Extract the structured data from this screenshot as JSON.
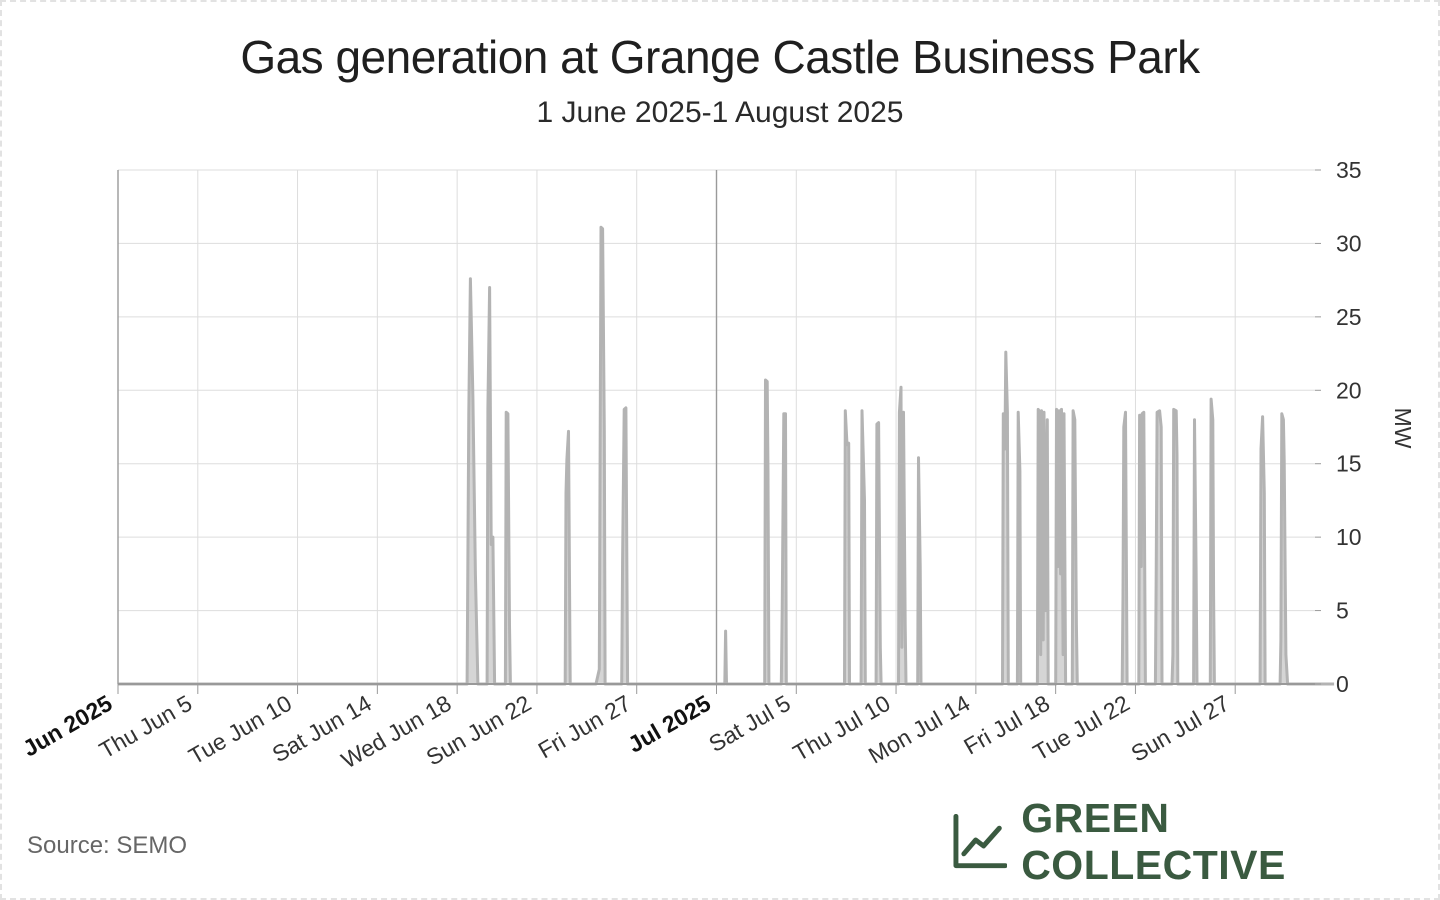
{
  "colors": {
    "series": "#b3b3b3",
    "grid": "#dddddd",
    "axis": "#999999",
    "brand": "#3a5a40"
  },
  "footer": {
    "source": "Source: SEMO",
    "brand": "GREEN COLLECTIVE",
    "brand_icon": "line-chart-icon"
  },
  "chart_data": {
    "type": "area",
    "title": "Gas generation at Grange Castle Business Park",
    "subtitle": "1 June 2025-1 August 2025",
    "xlabel": "",
    "ylabel": "MW",
    "y_axis_position": "right",
    "xlim": [
      "2025-06-01",
      "2025-07-31"
    ],
    "ylim": [
      0,
      35
    ],
    "yticks": [
      0,
      5,
      10,
      15,
      20,
      25,
      30,
      35
    ],
    "xticks": [
      {
        "date": "2025-06-01",
        "label": "Jun 2025",
        "major": true
      },
      {
        "date": "2025-06-05",
        "label": "Thu Jun 5",
        "major": false
      },
      {
        "date": "2025-06-10",
        "label": "Tue Jun 10",
        "major": false
      },
      {
        "date": "2025-06-14",
        "label": "Sat Jun 14",
        "major": false
      },
      {
        "date": "2025-06-18",
        "label": "Wed Jun 18",
        "major": false
      },
      {
        "date": "2025-06-22",
        "label": "Sun Jun 22",
        "major": false
      },
      {
        "date": "2025-06-27",
        "label": "Fri Jun 27",
        "major": false
      },
      {
        "date": "2025-07-01",
        "label": "Jul 2025",
        "major": true
      },
      {
        "date": "2025-07-05",
        "label": "Sat Jul 5",
        "major": false
      },
      {
        "date": "2025-07-10",
        "label": "Thu Jul 10",
        "major": false
      },
      {
        "date": "2025-07-14",
        "label": "Mon Jul 14",
        "major": false
      },
      {
        "date": "2025-07-18",
        "label": "Fri Jul 18",
        "major": false
      },
      {
        "date": "2025-07-22",
        "label": "Tue Jul 22",
        "major": false
      },
      {
        "date": "2025-07-27",
        "label": "Sun Jul 27",
        "major": false
      }
    ],
    "grid": true,
    "series": [
      {
        "values": [
          [
            "2025-06-01 00:00",
            0
          ],
          [
            "2025-06-18 12:00",
            0
          ],
          [
            "2025-06-18 14:00",
            18.5
          ],
          [
            "2025-06-18 16:00",
            27.6
          ],
          [
            "2025-06-18 19:00",
            19.5
          ],
          [
            "2025-06-18 22:00",
            7.5
          ],
          [
            "2025-06-19 01:00",
            0
          ],
          [
            "2025-06-19 12:00",
            0
          ],
          [
            "2025-06-19 13:00",
            18.8
          ],
          [
            "2025-06-19 15:00",
            27.0
          ],
          [
            "2025-06-19 17:00",
            9.5
          ],
          [
            "2025-06-19 19:00",
            10.0
          ],
          [
            "2025-06-19 21:00",
            0
          ],
          [
            "2025-06-20 10:00",
            0
          ],
          [
            "2025-06-20 11:00",
            18.5
          ],
          [
            "2025-06-20 13:00",
            18.4
          ],
          [
            "2025-06-20 15:00",
            4.0
          ],
          [
            "2025-06-20 16:00",
            0
          ],
          [
            "2025-06-23 10:00",
            0
          ],
          [
            "2025-06-23 11:00",
            13.0
          ],
          [
            "2025-06-23 12:00",
            15.3
          ],
          [
            "2025-06-23 14:00",
            17.2
          ],
          [
            "2025-06-23 16:00",
            0
          ],
          [
            "2025-06-24 23:00",
            0
          ],
          [
            "2025-06-25 03:00",
            1.0
          ],
          [
            "2025-06-25 05:00",
            31.1
          ],
          [
            "2025-06-25 07:00",
            31.0
          ],
          [
            "2025-06-25 09:00",
            17.2
          ],
          [
            "2025-06-25 10:00",
            0
          ],
          [
            "2025-06-26 06:00",
            0
          ],
          [
            "2025-06-26 07:00",
            8.5
          ],
          [
            "2025-06-26 09:00",
            18.7
          ],
          [
            "2025-06-26 11:00",
            18.8
          ],
          [
            "2025-06-26 13:00",
            0
          ],
          [
            "2025-07-01 10:00",
            0
          ],
          [
            "2025-07-01 11:00",
            3.6
          ],
          [
            "2025-07-01 12:00",
            0
          ],
          [
            "2025-07-03 10:00",
            0
          ],
          [
            "2025-07-03 11:00",
            20.7
          ],
          [
            "2025-07-03 13:00",
            20.6
          ],
          [
            "2025-07-03 14:00",
            14.5
          ],
          [
            "2025-07-03 15:00",
            0
          ],
          [
            "2025-07-04 06:00",
            0
          ],
          [
            "2025-07-04 07:00",
            5.0
          ],
          [
            "2025-07-04 09:00",
            18.4
          ],
          [
            "2025-07-04 11:00",
            18.4
          ],
          [
            "2025-07-04 12:00",
            0
          ],
          [
            "2025-07-07 10:00",
            0
          ],
          [
            "2025-07-07 11:00",
            18.6
          ],
          [
            "2025-07-07 13:00",
            16.3
          ],
          [
            "2025-07-07 15:00",
            16.4
          ],
          [
            "2025-07-07 16:00",
            0
          ],
          [
            "2025-07-08 06:00",
            0
          ],
          [
            "2025-07-08 07:00",
            18.6
          ],
          [
            "2025-07-08 10:00",
            12.5
          ],
          [
            "2025-07-08 11:00",
            0
          ],
          [
            "2025-07-09 00:00",
            0
          ],
          [
            "2025-07-09 01:00",
            17.7
          ],
          [
            "2025-07-09 03:00",
            17.8
          ],
          [
            "2025-07-09 05:00",
            2.5
          ],
          [
            "2025-07-09 06:00",
            0
          ],
          [
            "2025-07-10 03:00",
            0
          ],
          [
            "2025-07-10 04:00",
            18.5
          ],
          [
            "2025-07-10 06:00",
            20.2
          ],
          [
            "2025-07-10 07:00",
            2.5
          ],
          [
            "2025-07-10 09:00",
            18.5
          ],
          [
            "2025-07-10 11:00",
            4.0
          ],
          [
            "2025-07-10 12:00",
            0
          ],
          [
            "2025-07-11 02:00",
            0
          ],
          [
            "2025-07-11 03:00",
            15.4
          ],
          [
            "2025-07-11 05:00",
            8.0
          ],
          [
            "2025-07-11 06:00",
            0
          ],
          [
            "2025-07-15 08:00",
            0
          ],
          [
            "2025-07-15 09:00",
            18.4
          ],
          [
            "2025-07-15 11:00",
            16.0
          ],
          [
            "2025-07-15 12:00",
            22.6
          ],
          [
            "2025-07-15 14:00",
            18.5
          ],
          [
            "2025-07-15 15:00",
            0
          ],
          [
            "2025-07-16 02:00",
            0
          ],
          [
            "2025-07-16 03:00",
            18.5
          ],
          [
            "2025-07-16 05:00",
            14.5
          ],
          [
            "2025-07-16 06:00",
            0
          ],
          [
            "2025-07-17 02:00",
            0
          ],
          [
            "2025-07-17 03:00",
            18.7
          ],
          [
            "2025-07-17 05:00",
            18.5
          ],
          [
            "2025-07-17 06:00",
            2.0
          ],
          [
            "2025-07-17 07:00",
            18.6
          ],
          [
            "2025-07-17 09:00",
            3.0
          ],
          [
            "2025-07-17 10:00",
            18.5
          ],
          [
            "2025-07-17 12:00",
            5.0
          ],
          [
            "2025-07-17 14:00",
            18.0
          ],
          [
            "2025-07-17 15:00",
            0
          ],
          [
            "2025-07-18 00:00",
            0
          ],
          [
            "2025-07-18 01:00",
            18.7
          ],
          [
            "2025-07-18 03:00",
            8.0
          ],
          [
            "2025-07-18 04:00",
            18.6
          ],
          [
            "2025-07-18 06:00",
            7.5
          ],
          [
            "2025-07-18 07:00",
            18.7
          ],
          [
            "2025-07-18 09:00",
            2.0
          ],
          [
            "2025-07-18 10:00",
            18.4
          ],
          [
            "2025-07-18 12:00",
            0
          ],
          [
            "2025-07-18 20:00",
            0
          ],
          [
            "2025-07-18 21:00",
            18.6
          ],
          [
            "2025-07-18 23:00",
            18.0
          ],
          [
            "2025-07-19 01:00",
            4.0
          ],
          [
            "2025-07-19 02:00",
            0
          ],
          [
            "2025-07-21 08:00",
            0
          ],
          [
            "2025-07-21 09:00",
            6.0
          ],
          [
            "2025-07-21 10:00",
            17.5
          ],
          [
            "2025-07-21 12:00",
            18.5
          ],
          [
            "2025-07-21 14:00",
            0
          ],
          [
            "2025-07-22 04:00",
            0
          ],
          [
            "2025-07-22 05:00",
            18.3
          ],
          [
            "2025-07-22 07:00",
            8.0
          ],
          [
            "2025-07-22 08:00",
            18.4
          ],
          [
            "2025-07-22 10:00",
            18.5
          ],
          [
            "2025-07-22 12:00",
            0
          ],
          [
            "2025-07-23 00:00",
            0
          ],
          [
            "2025-07-23 01:00",
            7.5
          ],
          [
            "2025-07-23 02:00",
            18.5
          ],
          [
            "2025-07-23 05:00",
            18.6
          ],
          [
            "2025-07-23 07:00",
            17.5
          ],
          [
            "2025-07-23 08:00",
            0
          ],
          [
            "2025-07-23 20:00",
            0
          ],
          [
            "2025-07-23 21:00",
            2.0
          ],
          [
            "2025-07-23 22:00",
            18.7
          ],
          [
            "2025-07-24 01:00",
            18.6
          ],
          [
            "2025-07-24 02:00",
            15.6
          ],
          [
            "2025-07-24 03:00",
            0
          ],
          [
            "2025-07-24 22:00",
            0
          ],
          [
            "2025-07-24 23:00",
            18.0
          ],
          [
            "2025-07-25 01:00",
            7.8
          ],
          [
            "2025-07-25 02:00",
            0
          ],
          [
            "2025-07-25 18:00",
            0
          ],
          [
            "2025-07-25 19:00",
            19.4
          ],
          [
            "2025-07-25 21:00",
            18.0
          ],
          [
            "2025-07-25 22:00",
            6.0
          ],
          [
            "2025-07-25 23:00",
            0
          ],
          [
            "2025-07-28 06:00",
            0
          ],
          [
            "2025-07-28 07:00",
            16.0
          ],
          [
            "2025-07-28 09:00",
            18.2
          ],
          [
            "2025-07-28 11:00",
            13.0
          ],
          [
            "2025-07-28 12:00",
            0
          ],
          [
            "2025-07-29 06:00",
            0
          ],
          [
            "2025-07-29 07:00",
            3.0
          ],
          [
            "2025-07-29 08:00",
            18.4
          ],
          [
            "2025-07-29 10:00",
            18.0
          ],
          [
            "2025-07-29 11:00",
            15.2
          ],
          [
            "2025-07-29 13:00",
            2.0
          ],
          [
            "2025-07-29 15:00",
            0
          ],
          [
            "2025-07-31 23:00",
            0
          ]
        ]
      }
    ]
  }
}
